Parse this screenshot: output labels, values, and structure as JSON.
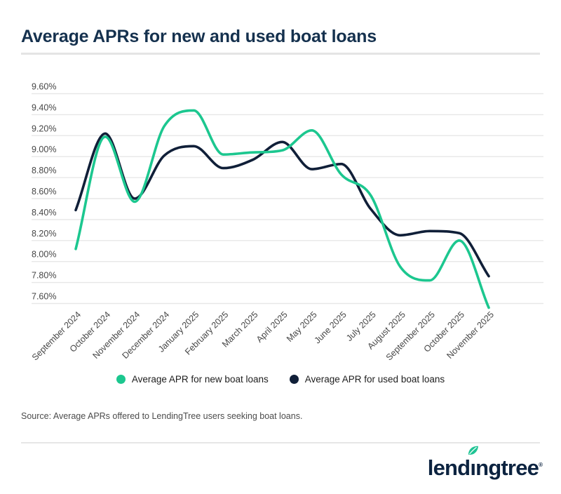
{
  "header": {
    "title": "Average APRs for new and used boat loans"
  },
  "chart_data": {
    "type": "line",
    "title": "Average APRs for new and used boat loans",
    "categories": [
      "September 2024",
      "October 2024",
      "November 2024",
      "December 2024",
      "January 2025",
      "February 2025",
      "March 2025",
      "April 2025",
      "May 2025",
      "June 2025",
      "July 2025",
      "August 2025",
      "September 2025",
      "October 2025",
      "November 2025"
    ],
    "series": [
      {
        "name": "Average APR for used boat loans",
        "color": "#101f38",
        "values": [
          8.49,
          9.22,
          8.6,
          9.01,
          9.1,
          8.89,
          8.97,
          9.14,
          8.88,
          8.93,
          8.5,
          8.25,
          8.29,
          8.27,
          7.86
        ]
      },
      {
        "name": "Average APR for new boat loans",
        "color": "#1cc78f",
        "values": [
          8.12,
          9.19,
          8.57,
          9.29,
          9.44,
          9.02,
          9.04,
          9.06,
          9.25,
          8.83,
          8.63,
          7.95,
          7.82,
          8.2,
          7.56
        ]
      }
    ],
    "y_tick_labels": [
      "9.60%",
      "9.40%",
      "9.20%",
      "9.00%",
      "8.80%",
      "8.60%",
      "8.40%",
      "8.20%",
      "8.00%",
      "7.80%",
      "7.60%"
    ],
    "ylim": [
      7.6,
      9.6
    ],
    "y_step": 0.2,
    "grid": true,
    "legend_position": "bottom",
    "legend_order": [
      "Average APR for new boat loans",
      "Average APR for used boat loans"
    ]
  },
  "source": {
    "text": "Source: Average APRs offered to LendingTree users seeking boat loans."
  },
  "logo": {
    "text_pre": "lend",
    "text_i": "ı",
    "text_post": "ngtree",
    "registered": "®",
    "navy": "#0c2340",
    "green": "#1fc494"
  }
}
